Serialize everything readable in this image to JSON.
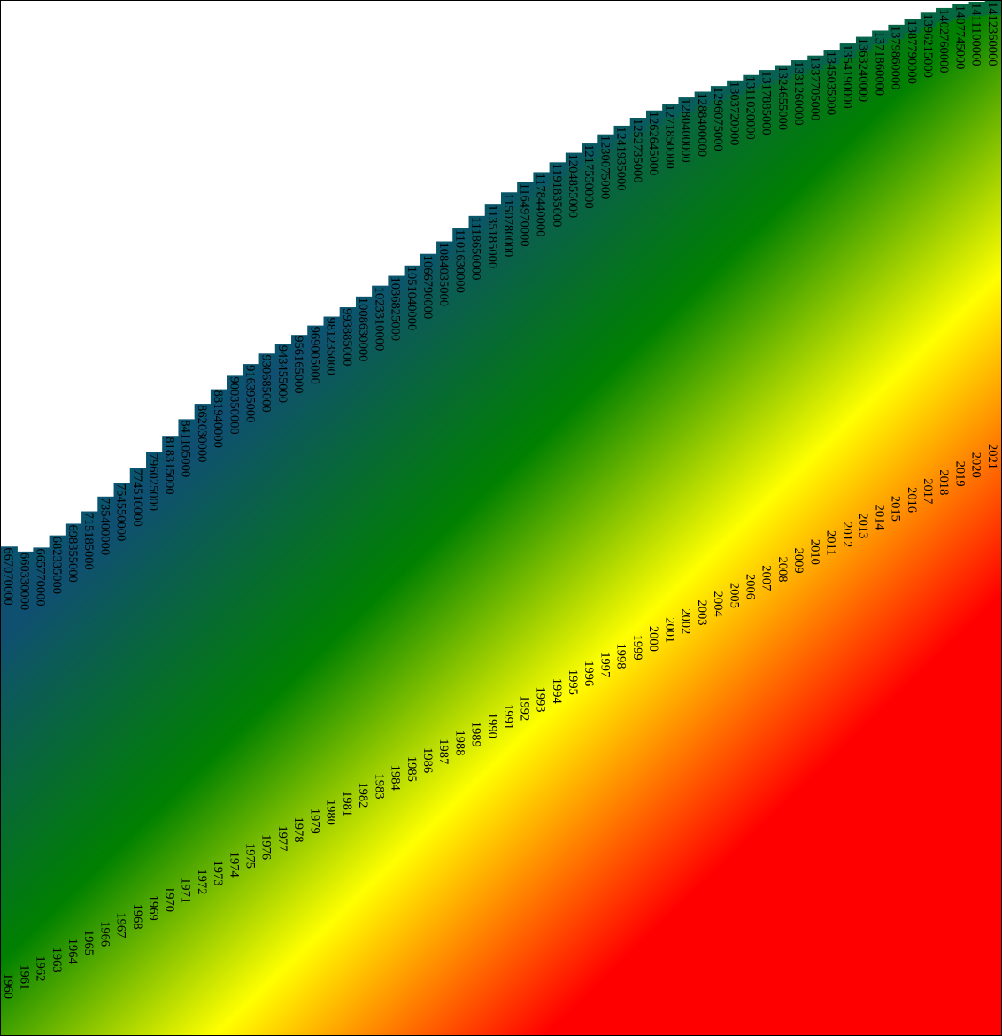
{
  "chart_data": {
    "type": "bar",
    "title": "",
    "xlabel": "",
    "ylabel": "",
    "orientation": "vertical, rotated labels",
    "categories": [
      "1960",
      "1961",
      "1962",
      "1963",
      "1964",
      "1965",
      "1966",
      "1967",
      "1968",
      "1969",
      "1970",
      "1971",
      "1972",
      "1973",
      "1974",
      "1975",
      "1976",
      "1977",
      "1978",
      "1979",
      "1980",
      "1981",
      "1982",
      "1983",
      "1984",
      "1985",
      "1986",
      "1987",
      "1988",
      "1989",
      "1990",
      "1991",
      "1992",
      "1993",
      "1994",
      "1995",
      "1996",
      "1997",
      "1998",
      "1999",
      "2000",
      "2001",
      "2002",
      "2003",
      "2004",
      "2005",
      "2006",
      "2007",
      "2008",
      "2009",
      "2010",
      "2011",
      "2012",
      "2013",
      "2014",
      "2015",
      "2016",
      "2017",
      "2018",
      "2019",
      "2020",
      "2021"
    ],
    "values": [
      667070000,
      660330000,
      665770000,
      682335000,
      698355000,
      715185000,
      735400000,
      754550000,
      774510000,
      796025000,
      818315000,
      841105000,
      862030000,
      881940000,
      900350000,
      916395000,
      930685000,
      943455000,
      956165000,
      969005000,
      981235000,
      993885000,
      1008630000,
      1023310000,
      1036825000,
      1051040000,
      1066790000,
      1084035000,
      1101630000,
      1118650000,
      1135185000,
      1150780000,
      1164970000,
      1178440000,
      1191835000,
      1204855000,
      1217550000,
      1230075000,
      1241935000,
      1252735000,
      1262645000,
      1271850000,
      1280400000,
      1288400000,
      1296075000,
      1303720000,
      1311020000,
      1317885000,
      1324655000,
      1331260000,
      1337705000,
      1345035000,
      1354190000,
      1363240000,
      1371860000,
      1379860000,
      1387790000,
      1396215000,
      1402760000,
      1407745000,
      1411100000,
      1412360000
    ],
    "value_labels": [
      "667070000",
      "660330000",
      "665770000",
      "682335000",
      "698355000",
      "715185000",
      "735400000",
      "754550000",
      "774510000",
      "796025000",
      "818315000",
      "841105000",
      "862030000",
      "881940000",
      "900350000",
      "916395000",
      "930685000",
      "943455000",
      "956165000",
      "969005000",
      "981235000",
      "993885000",
      "1008630000",
      "1023310000",
      "1036825000",
      "1051040000",
      "1066790000",
      "1084035000",
      "1101630000",
      "1118650000",
      "1135185000",
      "1150780000",
      "1164970000",
      "1178440000",
      "1191835000",
      "1204855000",
      "1217550000",
      "1230075000",
      "1241935000",
      "1252735000",
      "1262645000",
      "1271850000",
      "1280400000",
      "1288400000",
      "1296075000",
      "1303720000",
      "1311020000",
      "1317885000",
      "1324655000",
      "1331260000",
      "1337705000",
      "1345035000",
      "1354190000",
      "1363240000",
      "1371860000",
      "1379860000",
      "1387790000",
      "1396215000",
      "1402760000",
      "1407745000",
      "1411100000",
      "1412360000"
    ],
    "colors": {
      "gradient_stops": [
        "#0f5070",
        "#008000",
        "#ffff00",
        "#ff0000"
      ],
      "bar_top": "#0a5870",
      "background": "#ffffff",
      "text": "#000000",
      "frame": "#000000"
    }
  }
}
